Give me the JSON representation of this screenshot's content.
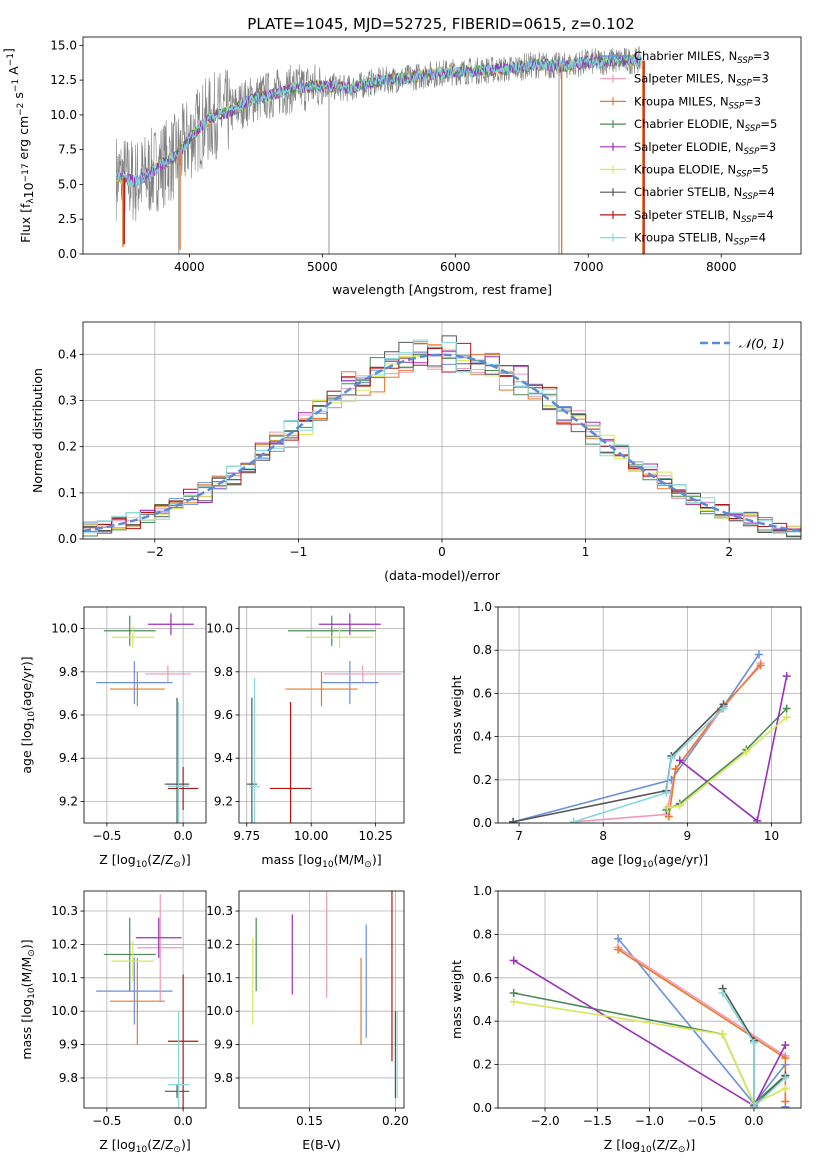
{
  "figure": {
    "title": "PLATE=1045, MJD=52725, FIBERID=0615, z=0.102"
  },
  "models": [
    {
      "name": "Chabrier MILES, N",
      "nssp": "=3",
      "color": "#6a8fdc"
    },
    {
      "name": "Salpeter MILES, N",
      "nssp": "=3",
      "color": "#f09ab8"
    },
    {
      "name": "Kroupa MILES, N",
      "nssp": "=3",
      "color": "#e87a2a"
    },
    {
      "name": "Chabrier ELODIE, N",
      "nssp": "=5",
      "color": "#4c8a55"
    },
    {
      "name": "Salpeter ELODIE, N",
      "nssp": "=3",
      "color": "#9b30b8"
    },
    {
      "name": "Kroupa ELODIE, N",
      "nssp": "=5",
      "color": "#d6e85a"
    },
    {
      "name": "Chabrier STELIB, N",
      "nssp": "=4",
      "color": "#555555"
    },
    {
      "name": "Salpeter STELIB, N",
      "nssp": "=4",
      "color": "#b01818"
    },
    {
      "name": "Kroupa STELIB, N",
      "nssp": "=4",
      "color": "#86d8dc"
    }
  ],
  "chart_data": [
    {
      "id": "spectrum",
      "type": "line",
      "xlabel": "wavelength [Angstrom, rest frame]",
      "ylabel": "Flux [f",
      "ylabel_parts": [
        "λ",
        "10",
        "−17",
        " erg cm",
        "−2",
        " s",
        "−1",
        " A",
        "−1",
        "]"
      ],
      "xlim": [
        3200,
        8600
      ],
      "ylim": [
        0,
        15.6
      ],
      "xticks": [
        4000,
        5000,
        6000,
        7000,
        8000
      ],
      "yticks": [
        0.0,
        2.5,
        5.0,
        7.5,
        10.0,
        12.5,
        15.0
      ],
      "data_color": "#808080",
      "legend_position": "right",
      "legend_sub": "SSP",
      "continuum": [
        [
          3450,
          5.6
        ],
        [
          3600,
          5.2
        ],
        [
          3700,
          5.8
        ],
        [
          3800,
          6.5
        ],
        [
          3900,
          7.0
        ],
        [
          4000,
          8.3
        ],
        [
          4100,
          9.3
        ],
        [
          4200,
          10.0
        ],
        [
          4300,
          10.2
        ],
        [
          4400,
          10.8
        ],
        [
          4500,
          11.2
        ],
        [
          4600,
          11.4
        ],
        [
          4700,
          11.7
        ],
        [
          4800,
          11.9
        ],
        [
          5000,
          12.1
        ],
        [
          5200,
          11.9
        ],
        [
          5400,
          12.4
        ],
        [
          5600,
          12.6
        ],
        [
          5800,
          12.9
        ],
        [
          6000,
          13.1
        ],
        [
          6200,
          13.2
        ],
        [
          6400,
          13.3
        ],
        [
          6600,
          13.6
        ],
        [
          6800,
          13.5
        ],
        [
          7000,
          13.8
        ],
        [
          7200,
          13.9
        ],
        [
          7400,
          13.9
        ]
      ],
      "gray_spikes": [
        {
          "x": 3920,
          "y": 0
        },
        {
          "x": 5050,
          "y": 0
        },
        {
          "x": 6780,
          "y": 0
        }
      ],
      "color_spikes": [
        {
          "x": 3500,
          "y": 0.5,
          "model": 2
        },
        {
          "x": 3510,
          "y": 0.7,
          "model": 7
        },
        {
          "x": 3930,
          "y": 0.3,
          "model": 2
        },
        {
          "x": 6800,
          "y": 0,
          "model": 2
        },
        {
          "x": 7410,
          "y": 0,
          "model": 2
        },
        {
          "x": 7420,
          "y": 0,
          "model": 7
        }
      ]
    },
    {
      "id": "residuals",
      "type": "step",
      "xlabel": "(data-model)/error",
      "ylabel": "Normed distribution",
      "xlim": [
        -2.5,
        2.5
      ],
      "ylim": [
        0,
        0.47
      ],
      "xticks": [
        -2,
        -1,
        0,
        1,
        2
      ],
      "xtick_labels": [
        "−2",
        "−1",
        "0",
        "1",
        "2"
      ],
      "yticks": [
        0.0,
        0.1,
        0.2,
        0.3,
        0.4
      ],
      "grid": true,
      "legend_position": "top-right",
      "gauss_label": "𝒩(0, 1)",
      "gauss_color": "#5b8ad8",
      "bin_width": 0.1
    },
    {
      "id": "age-vs-z",
      "type": "errorbar",
      "xlabel": "Z [log",
      "xlabel_parts": [
        "10",
        "(Z/Z",
        "⊙",
        ")]"
      ],
      "ylabel": "age  [log",
      "ylabel_parts": [
        "10",
        "(age/yr)]"
      ],
      "xlim": [
        -0.65,
        0.15
      ],
      "ylim": [
        9.1,
        10.1
      ],
      "xticks": [
        -0.5,
        0.0
      ],
      "xtick_labels": [
        "−0.5",
        "0.0"
      ],
      "yticks": [
        9.2,
        9.4,
        9.6,
        9.8,
        10.0
      ],
      "grid": true,
      "points": [
        {
          "model": 0,
          "x": -0.32,
          "xe": 0.25,
          "y": 9.75,
          "ye": 0.1
        },
        {
          "model": 1,
          "x": -0.1,
          "xe": 0.15,
          "y": 9.79,
          "ye": 0.04
        },
        {
          "model": 2,
          "x": -0.3,
          "xe": 0.18,
          "y": 9.72,
          "ye": 0.08
        },
        {
          "model": 3,
          "x": -0.35,
          "xe": 0.17,
          "y": 9.99,
          "ye": 0.07
        },
        {
          "model": 4,
          "x": -0.08,
          "xe": 0.15,
          "y": 10.02,
          "ye": 0.05
        },
        {
          "model": 5,
          "x": -0.33,
          "xe": 0.14,
          "y": 9.96,
          "ye": 0.05
        },
        {
          "model": 6,
          "x": -0.04,
          "xe": 0.08,
          "y": 9.28,
          "ye": 0.4
        },
        {
          "model": 7,
          "x": 0.0,
          "xe": 0.1,
          "y": 9.26,
          "ye": 0.1
        },
        {
          "model": 8,
          "x": -0.03,
          "xe": 0.07,
          "y": 9.27,
          "ye": 0.39
        }
      ]
    },
    {
      "id": "age-vs-mass",
      "type": "errorbar",
      "xlabel": "mass [log",
      "xlabel_parts": [
        "10",
        "(M/M",
        "⊙",
        ")]"
      ],
      "xlim": [
        9.72,
        10.36
      ],
      "ylim": [
        9.1,
        10.1
      ],
      "xticks": [
        9.75,
        10.0,
        10.25
      ],
      "xtick_labels": [
        "9.75",
        "10.00",
        "10.25"
      ],
      "yticks": [
        9.2,
        9.4,
        9.6,
        9.8,
        10.0
      ],
      "grid": true,
      "points": [
        {
          "model": 0,
          "x": 10.15,
          "xe": 0.11,
          "y": 9.75,
          "ye": 0.1
        },
        {
          "model": 1,
          "x": 10.2,
          "xe": 0.15,
          "y": 9.79,
          "ye": 0.04
        },
        {
          "model": 2,
          "x": 10.04,
          "xe": 0.14,
          "y": 9.72,
          "ye": 0.08
        },
        {
          "model": 3,
          "x": 10.08,
          "xe": 0.17,
          "y": 9.99,
          "ye": 0.07
        },
        {
          "model": 4,
          "x": 10.15,
          "xe": 0.12,
          "y": 10.02,
          "ye": 0.05
        },
        {
          "model": 5,
          "x": 10.11,
          "xe": 0.13,
          "y": 9.96,
          "ye": 0.05
        },
        {
          "model": 6,
          "x": 9.77,
          "xe": 0.02,
          "y": 9.28,
          "ye": 0.4
        },
        {
          "model": 7,
          "x": 9.92,
          "xe": 0.08,
          "y": 9.26,
          "ye": 0.4
        },
        {
          "model": 8,
          "x": 9.78,
          "xe": 0.02,
          "y": 9.27,
          "ye": 0.5
        }
      ]
    },
    {
      "id": "weight-vs-age",
      "type": "line",
      "xlabel": "age  [log",
      "xlabel_parts": [
        "10",
        "(age/yr)]"
      ],
      "ylabel": "mass weight",
      "xlim": [
        6.75,
        10.35
      ],
      "ylim": [
        0,
        1
      ],
      "xticks": [
        7,
        8,
        9,
        10
      ],
      "yticks": [
        0.0,
        0.2,
        0.4,
        0.6,
        0.8,
        1.0
      ],
      "grid": true,
      "series": [
        {
          "model": 0,
          "x": [
            6.93,
            8.81,
            9.43,
            9.85
          ],
          "y": [
            0.005,
            0.2,
            0.54,
            0.78
          ]
        },
        {
          "model": 1,
          "x": [
            7.65,
            8.75,
            8.86,
            9.42,
            9.87
          ],
          "y": [
            0.005,
            0.04,
            0.25,
            0.53,
            0.74
          ]
        },
        {
          "model": 2,
          "x": [
            8.78,
            8.86,
            9.4,
            9.87
          ],
          "y": [
            0.03,
            0.25,
            0.53,
            0.73
          ]
        },
        {
          "model": 3,
          "x": [
            8.75,
            8.91,
            9.7,
            10.18
          ],
          "y": [
            0.06,
            0.09,
            0.34,
            0.53
          ]
        },
        {
          "model": 4,
          "x": [
            8.91,
            9.83,
            10.18
          ],
          "y": [
            0.29,
            0.01,
            0.68
          ]
        },
        {
          "model": 5,
          "x": [
            8.76,
            8.91,
            9.7,
            10.18
          ],
          "y": [
            0.07,
            0.08,
            0.33,
            0.49
          ]
        },
        {
          "model": 6,
          "x": [
            6.93,
            8.75,
            8.81,
            9.43
          ],
          "y": [
            0.005,
            0.15,
            0.31,
            0.55
          ]
        },
        {
          "model": 8,
          "x": [
            7.65,
            8.75,
            8.81,
            9.43
          ],
          "y": [
            0.005,
            0.14,
            0.3,
            0.53
          ]
        }
      ]
    },
    {
      "id": "mass-vs-z",
      "type": "errorbar",
      "xlabel": "Z [log",
      "xlabel_parts": [
        "10",
        "(Z/Z",
        "⊙",
        ")]"
      ],
      "ylabel": "mass [log",
      "ylabel_parts": [
        "10",
        "(M/M",
        "⊙",
        ")]"
      ],
      "xlim": [
        -0.65,
        0.15
      ],
      "ylim": [
        9.71,
        10.36
      ],
      "xticks": [
        -0.5,
        0.0
      ],
      "xtick_labels": [
        "−0.5",
        "0.0"
      ],
      "yticks": [
        9.8,
        9.9,
        10.0,
        10.1,
        10.2,
        10.3
      ],
      "grid": true,
      "points": [
        {
          "model": 0,
          "x": -0.32,
          "xe": 0.25,
          "y": 10.06,
          "ye": 0.1
        },
        {
          "model": 1,
          "x": -0.15,
          "xe": 0.15,
          "y": 10.19,
          "ye": 0.16
        },
        {
          "model": 2,
          "x": -0.3,
          "xe": 0.18,
          "y": 10.03,
          "ye": 0.13
        },
        {
          "model": 3,
          "x": -0.35,
          "xe": 0.17,
          "y": 10.17,
          "ye": 0.11
        },
        {
          "model": 4,
          "x": -0.16,
          "xe": 0.15,
          "y": 10.22,
          "ye": 0.06
        },
        {
          "model": 5,
          "x": -0.33,
          "xe": 0.14,
          "y": 10.15,
          "ye": 0.06
        },
        {
          "model": 6,
          "x": -0.04,
          "xe": 0.08,
          "y": 9.76,
          "ye": 0.02
        },
        {
          "model": 7,
          "x": 0.0,
          "xe": 0.1,
          "y": 9.91,
          "ye": 0.2
        },
        {
          "model": 8,
          "x": -0.03,
          "xe": 0.07,
          "y": 9.78,
          "ye": 0.22
        }
      ]
    },
    {
      "id": "mass-vs-ebv",
      "type": "errorbar",
      "xlabel": "E(B-V)",
      "xlim": [
        0.109,
        0.205
      ],
      "ylim": [
        9.71,
        10.36
      ],
      "xticks": [
        0.15,
        0.2
      ],
      "xtick_labels": [
        "0.15",
        "0.20"
      ],
      "yticks": [
        9.8,
        9.9,
        10.0,
        10.1,
        10.2,
        10.3
      ],
      "grid": true,
      "points": [
        {
          "model": 0,
          "x": 0.183,
          "y": 10.09,
          "ye": 0.17
        },
        {
          "model": 1,
          "x": 0.16,
          "y": 10.2,
          "ye": 0.16
        },
        {
          "model": 2,
          "x": 0.18,
          "y": 10.03,
          "ye": 0.13
        },
        {
          "model": 3,
          "x": 0.119,
          "y": 10.17,
          "ye": 0.11
        },
        {
          "model": 4,
          "x": 0.14,
          "y": 10.17,
          "ye": 0.12
        },
        {
          "model": 5,
          "x": 0.117,
          "y": 10.09,
          "ye": 0.13
        },
        {
          "model": 6,
          "x": 0.2,
          "y": 9.87,
          "ye": 0.13
        },
        {
          "model": 7,
          "x": 0.198,
          "y": 10.11,
          "ye": 0.26
        },
        {
          "model": 8,
          "x": 0.201,
          "y": 9.87,
          "ye": 0.13
        }
      ]
    },
    {
      "id": "weight-vs-z",
      "type": "line",
      "xlabel": "Z [log",
      "xlabel_parts": [
        "10",
        "(Z/Z",
        "⊙",
        ")]"
      ],
      "ylabel": "mass weight",
      "xlim": [
        -2.45,
        0.45
      ],
      "ylim": [
        0,
        1
      ],
      "xticks": [
        -2.0,
        -1.5,
        -1.0,
        -0.5,
        0.0
      ],
      "xtick_labels": [
        "−2.0",
        "−1.5",
        "−1.0",
        "−0.5",
        "0.0"
      ],
      "yticks": [
        0.0,
        0.2,
        0.4,
        0.6,
        0.8,
        1.0
      ],
      "grid": true,
      "series": [
        {
          "model": 0,
          "x": [
            -1.3,
            0.0,
            0.3,
            0.3
          ],
          "y": [
            0.78,
            0.02,
            0.2,
            0.005
          ]
        },
        {
          "model": 1,
          "x": [
            -1.3,
            0.3,
            0.3
          ],
          "y": [
            0.74,
            0.24,
            0.03
          ]
        },
        {
          "model": 2,
          "x": [
            -1.3,
            0.3,
            0.3
          ],
          "y": [
            0.73,
            0.23,
            0.03
          ]
        },
        {
          "model": 3,
          "x": [
            -2.3,
            -0.3,
            0.0,
            0.3
          ],
          "y": [
            0.53,
            0.34,
            0.02,
            0.15
          ]
        },
        {
          "model": 4,
          "x": [
            -2.3,
            0.0,
            0.3
          ],
          "y": [
            0.68,
            0.01,
            0.29
          ]
        },
        {
          "model": 5,
          "x": [
            -2.3,
            -0.3,
            0.0,
            0.3
          ],
          "y": [
            0.49,
            0.34,
            0.02,
            0.09
          ]
        },
        {
          "model": 6,
          "x": [
            -0.3,
            0.0,
            0.0,
            0.3
          ],
          "y": [
            0.55,
            0.31,
            0.005,
            0.15
          ]
        },
        {
          "model": 8,
          "x": [
            -0.3,
            0.0,
            0.0,
            0.3
          ],
          "y": [
            0.53,
            0.3,
            0.005,
            0.14
          ]
        }
      ]
    }
  ]
}
